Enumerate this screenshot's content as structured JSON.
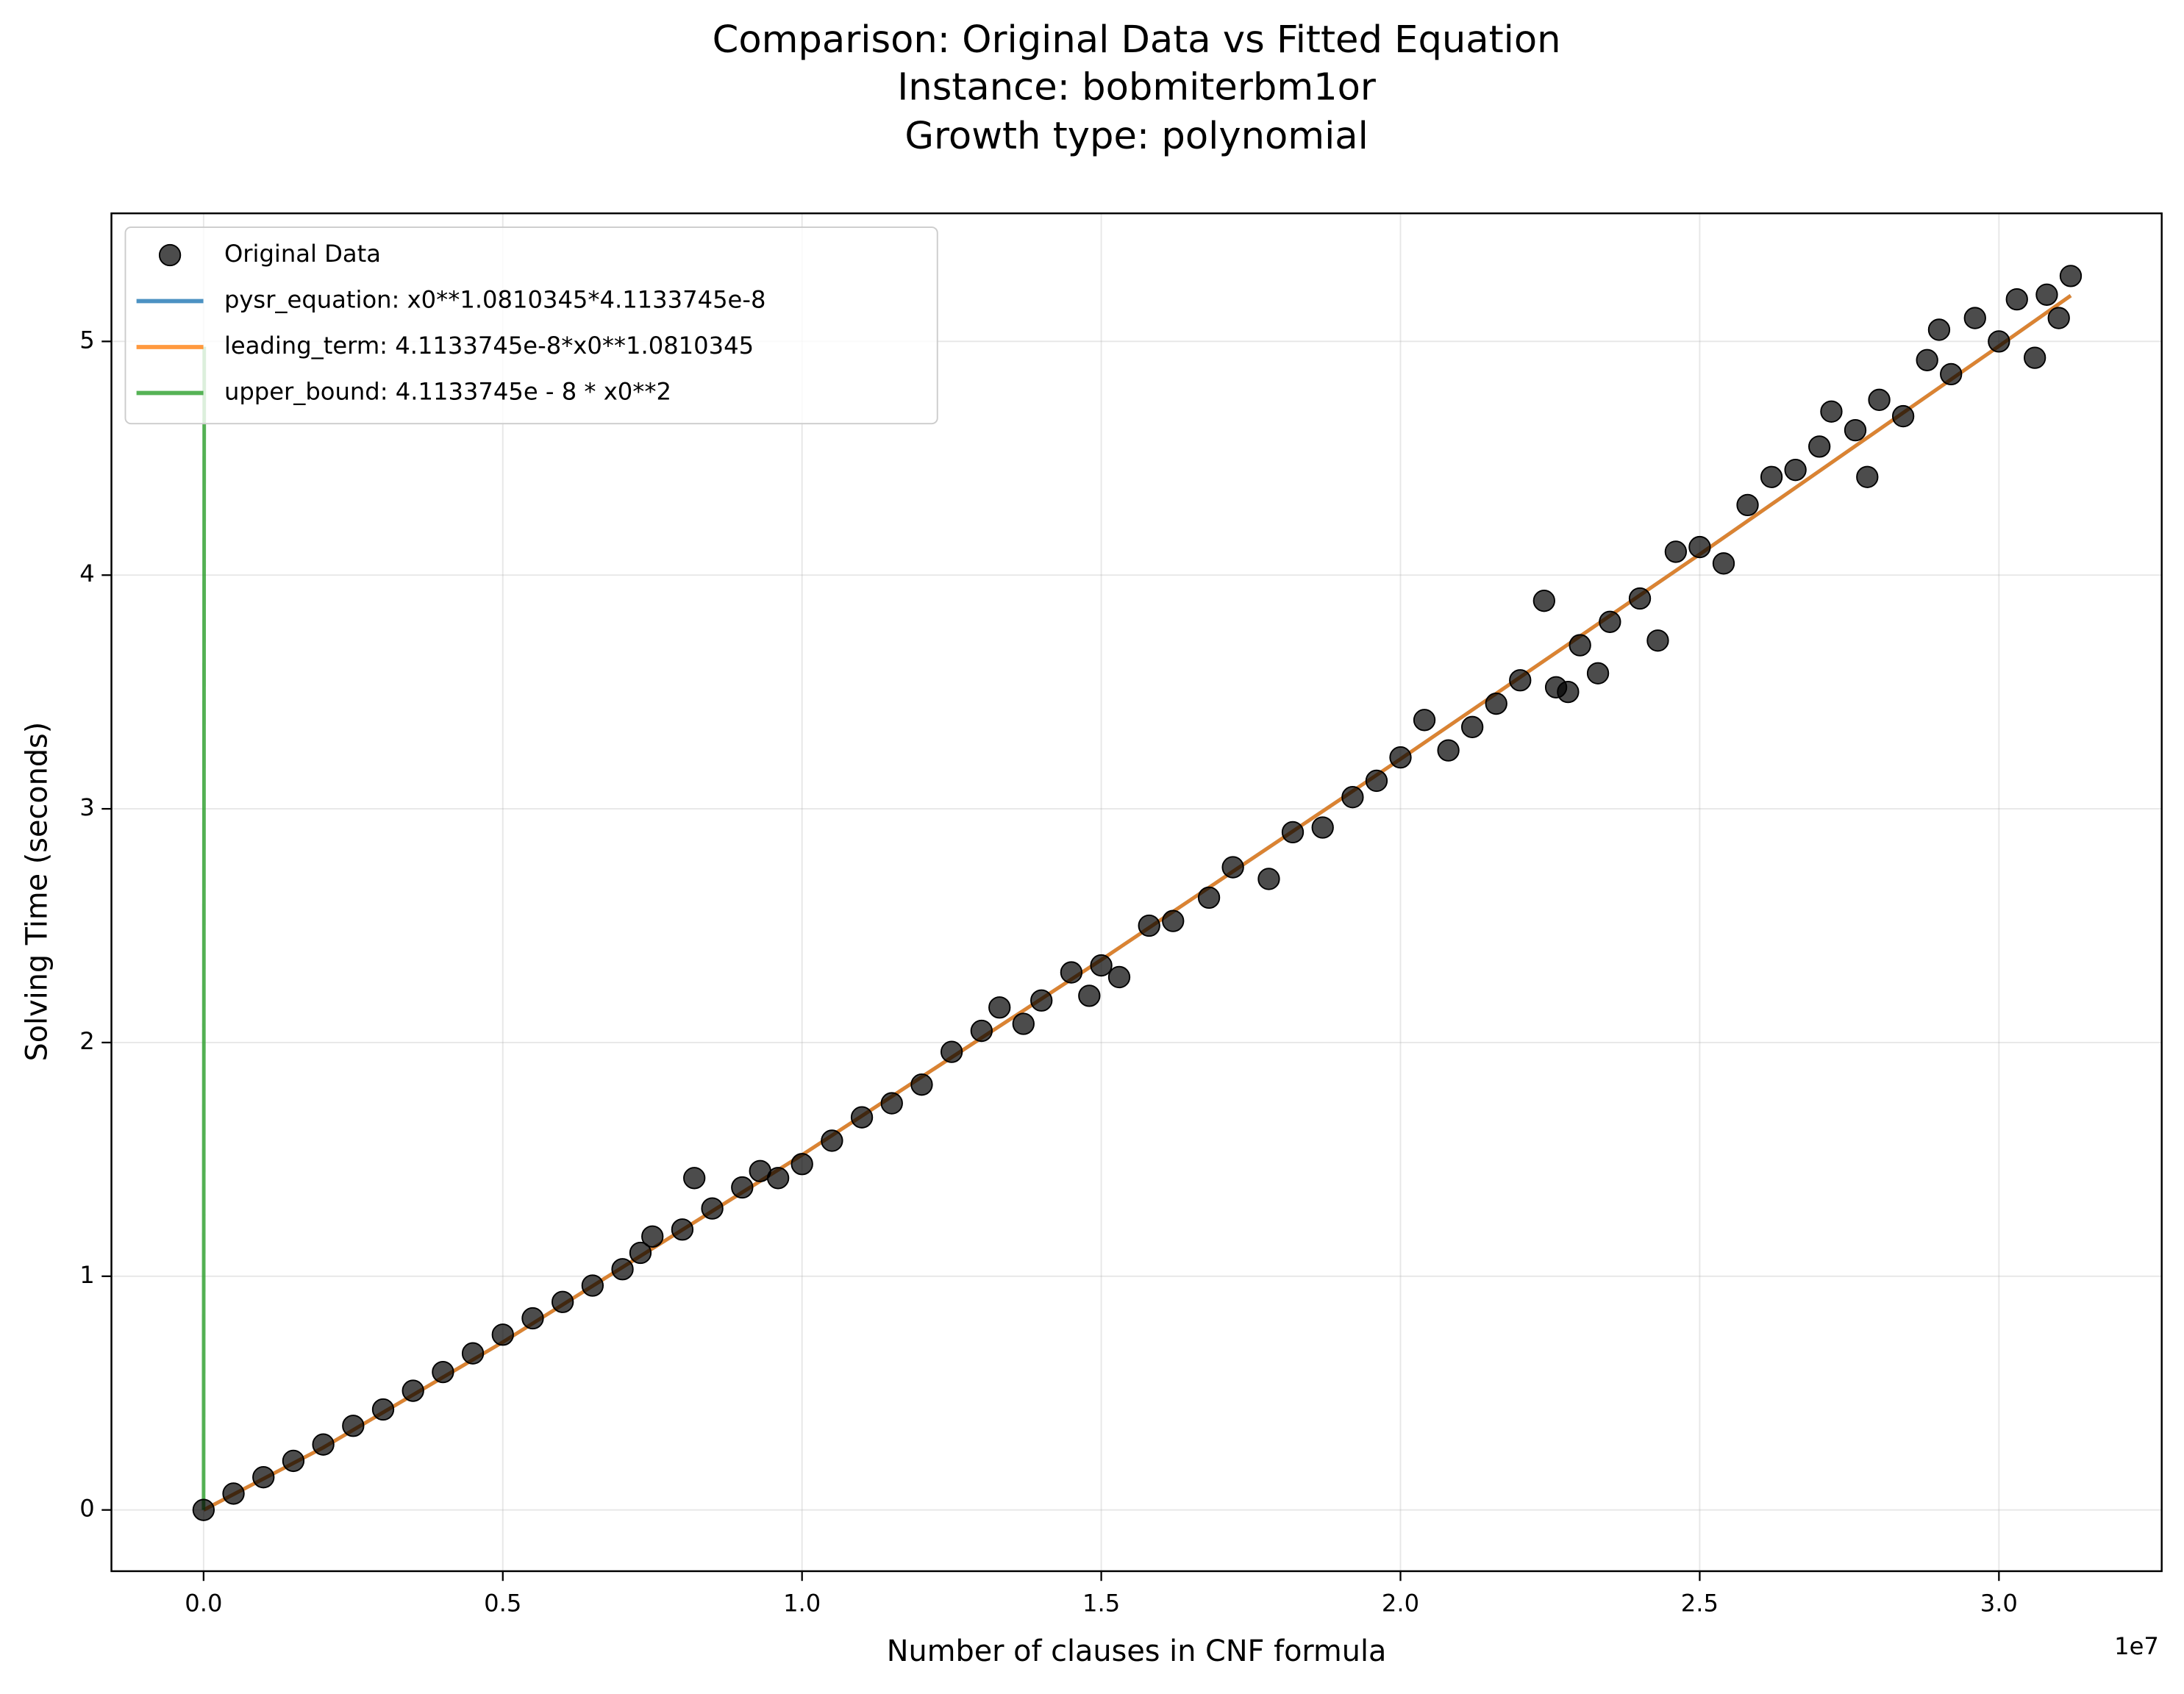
{
  "chart_data": {
    "type": "scatter",
    "title": [
      "Comparison: Original Data vs Fitted Equation",
      "Instance: bobmiterbm1or",
      "Growth type: polynomial"
    ],
    "x_label": "Number of clauses in CNF formula",
    "y_label": "Solving Time (seconds)",
    "x_offset_label": "1e7",
    "xlim": [
      -1540000,
      32720000
    ],
    "ylim": [
      -0.262,
      5.548
    ],
    "xticks": [
      {
        "value": 0,
        "label": "0.0"
      },
      {
        "value": 5000000,
        "label": "0.5"
      },
      {
        "value": 10000000,
        "label": "1.0"
      },
      {
        "value": 15000000,
        "label": "1.5"
      },
      {
        "value": 20000000,
        "label": "2.0"
      },
      {
        "value": 25000000,
        "label": "2.5"
      },
      {
        "value": 30000000,
        "label": "3.0"
      }
    ],
    "yticks": [
      0,
      1,
      2,
      3,
      4,
      5
    ],
    "grid": true,
    "legend": "upper left",
    "series": [
      {
        "name": "Original Data",
        "type": "scatter",
        "color": "#000000",
        "x": [
          0,
          500000,
          1000000,
          1500000,
          2000000,
          2500000,
          3000000,
          3500000,
          4000000,
          4500000,
          5000000,
          5500000,
          6000000,
          6500000,
          7000000,
          7300000,
          7500000,
          8000000,
          8200000,
          8500000,
          9000000,
          9300000,
          9600000,
          10000000,
          10500000,
          11000000,
          11500000,
          12000000,
          12500000,
          13000000,
          13300000,
          13700000,
          14000000,
          14500000,
          14800000,
          15000000,
          15300000,
          15800000,
          16200000,
          16800000,
          17200000,
          17800000,
          18200000,
          18700000,
          19200000,
          19600000,
          20000000,
          20400000,
          20800000,
          21200000,
          21600000,
          22000000,
          22400000,
          22600000,
          22800000,
          23000000,
          23300000,
          23500000,
          24000000,
          24300000,
          24600000,
          25000000,
          25400000,
          25800000,
          26200000,
          26600000,
          27000000,
          27200000,
          27600000,
          27800000,
          28000000,
          28400000,
          28800000,
          29000000,
          29200000,
          29600000,
          30000000,
          30300000,
          30600000,
          30800000,
          31000000,
          31200000
        ],
        "values": [
          0,
          0.07,
          0.14,
          0.21,
          0.28,
          0.36,
          0.43,
          0.51,
          0.59,
          0.67,
          0.75,
          0.82,
          0.89,
          0.96,
          1.03,
          1.1,
          1.17,
          1.2,
          1.42,
          1.29,
          1.38,
          1.45,
          1.42,
          1.48,
          1.58,
          1.68,
          1.74,
          1.82,
          1.96,
          2.05,
          2.15,
          2.08,
          2.18,
          2.3,
          2.2,
          2.33,
          2.28,
          2.5,
          2.52,
          2.62,
          2.75,
          2.7,
          2.9,
          2.92,
          3.05,
          3.12,
          3.22,
          3.38,
          3.25,
          3.35,
          3.45,
          3.55,
          3.89,
          3.52,
          3.5,
          3.7,
          3.58,
          3.8,
          3.9,
          3.72,
          4.1,
          4.12,
          4.05,
          4.3,
          4.42,
          4.45,
          4.55,
          4.7,
          4.62,
          4.42,
          4.75,
          4.68,
          4.92,
          5.05,
          4.86,
          5.1,
          5.0,
          5.18,
          4.93,
          5.2,
          5.1,
          5.28
        ]
      },
      {
        "name": "pysr_equation: x0**1.0810345*4.1133745e-8",
        "type": "line",
        "color": "#1f77b4",
        "x": [
          0,
          2000000,
          5000000,
          10000000,
          15000000,
          20000000,
          25000000,
          30000000,
          31200000
        ],
        "values": [
          0,
          0.267,
          0.718,
          1.519,
          2.354,
          3.213,
          4.089,
          4.98,
          5.196
        ]
      },
      {
        "name": "leading_term: 4.1133745e-8*x0**1.0810345",
        "type": "line",
        "color": "#ff7f0e",
        "x": [
          0,
          2000000,
          5000000,
          10000000,
          15000000,
          20000000,
          25000000,
          30000000,
          31200000
        ],
        "values": [
          0,
          0.267,
          0.718,
          1.519,
          2.354,
          3.213,
          4.089,
          4.98,
          5.196
        ]
      },
      {
        "name": "upper_bound: 4.1133745e - 8 * x0**2",
        "type": "line",
        "color": "#2ca02c",
        "x": [
          0,
          11000
        ],
        "values": [
          0,
          4.977
        ]
      }
    ]
  }
}
